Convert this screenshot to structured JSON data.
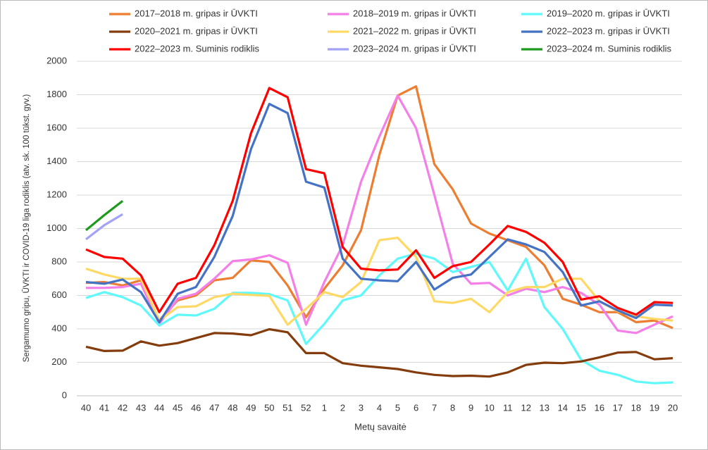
{
  "chart_data": {
    "type": "line",
    "y_label": "Sergamumo gripu, ŪVKTI ir COVID-19 liga rodiklis (atv. sk. 100 tūkst. gyv.)",
    "x_label": "Metų savaitė",
    "categories": [
      "40",
      "41",
      "42",
      "43",
      "44",
      "45",
      "46",
      "47",
      "48",
      "49",
      "50",
      "51",
      "52",
      "1",
      "2",
      "3",
      "4",
      "5",
      "6",
      "7",
      "8",
      "9",
      "10",
      "11",
      "12",
      "13",
      "14",
      "15",
      "16",
      "17",
      "18",
      "19",
      "20"
    ],
    "ylim": [
      0,
      2000
    ],
    "yticks": [
      0,
      200,
      400,
      600,
      800,
      1000,
      1200,
      1400,
      1600,
      1800,
      2000
    ],
    "grid": true,
    "legend": "top",
    "series": [
      {
        "name": "2017–2018 m. gripas ir ŪVKTI",
        "color": "#ed7d31",
        "values": [
          675,
          680,
          660,
          690,
          450,
          570,
          600,
          690,
          705,
          810,
          800,
          660,
          470,
          640,
          780,
          990,
          1440,
          1795,
          1850,
          1385,
          1235,
          1030,
          970,
          930,
          890,
          780,
          580,
          545,
          500,
          500,
          440,
          450,
          405
        ]
      },
      {
        "name": "2018–2019 m. gripas ir ŪVKTI",
        "color": "#f47fe8",
        "values": [
          645,
          645,
          650,
          670,
          430,
          580,
          610,
          700,
          805,
          815,
          840,
          795,
          425,
          680,
          900,
          1280,
          1550,
          1795,
          1600,
          1200,
          790,
          670,
          675,
          600,
          640,
          620,
          650,
          615,
          545,
          390,
          375,
          425,
          475
        ]
      },
      {
        "name": "2019–2020 m. gripas ir ŪVKTI",
        "color": "#5ff8fb",
        "values": [
          585,
          620,
          590,
          540,
          420,
          485,
          480,
          520,
          615,
          615,
          608,
          570,
          310,
          430,
          570,
          600,
          720,
          820,
          850,
          820,
          740,
          770,
          800,
          630,
          820,
          530,
          400,
          215,
          150,
          125,
          85,
          75,
          80
        ]
      },
      {
        "name": "2020–2021 m. gripas ir ŪVKTI",
        "color": "#843c0c",
        "values": [
          293,
          268,
          270,
          325,
          300,
          315,
          345,
          375,
          372,
          362,
          398,
          380,
          255,
          255,
          195,
          180,
          170,
          160,
          140,
          125,
          118,
          120,
          115,
          140,
          185,
          198,
          195,
          205,
          230,
          258,
          262,
          218,
          225
        ]
      },
      {
        "name": "2021–2022 m. gripas ir ŪVKTI",
        "color": "#ffd966",
        "values": [
          760,
          725,
          700,
          700,
          450,
          530,
          535,
          590,
          610,
          603,
          598,
          425,
          520,
          620,
          590,
          680,
          930,
          945,
          830,
          565,
          555,
          580,
          500,
          620,
          650,
          650,
          700,
          700,
          565,
          505,
          475,
          460,
          450
        ]
      },
      {
        "name": "2022–2023 m. gripas ir ŪVKTI",
        "color": "#4472c4",
        "values": [
          680,
          670,
          695,
          620,
          440,
          610,
          650,
          830,
          1075,
          1475,
          1745,
          1690,
          1280,
          1245,
          820,
          700,
          690,
          685,
          800,
          635,
          705,
          725,
          830,
          935,
          905,
          860,
          740,
          540,
          565,
          510,
          465,
          545,
          540
        ]
      },
      {
        "name": "2022–2023 m. Suminis rodiklis",
        "color": "#ff0000",
        "values": [
          875,
          830,
          820,
          720,
          500,
          670,
          705,
          900,
          1165,
          1570,
          1840,
          1785,
          1355,
          1330,
          890,
          760,
          750,
          755,
          870,
          705,
          775,
          800,
          905,
          1015,
          980,
          915,
          800,
          575,
          595,
          525,
          485,
          560,
          555
        ]
      },
      {
        "name": "2023–2024 m. gripas ir ŪVKTI",
        "color": "#a3a3f5",
        "values": [
          935,
          1020,
          1085,
          null,
          null,
          null,
          null,
          null,
          null,
          null,
          null,
          null,
          null,
          null,
          null,
          null,
          null,
          null,
          null,
          null,
          null,
          null,
          null,
          null,
          null,
          null,
          null,
          null,
          null,
          null,
          null,
          null,
          null
        ]
      },
      {
        "name": "2023–2024 m. Suminis rodiklis",
        "color": "#1e9a1e",
        "values": [
          990,
          1080,
          1165,
          null,
          null,
          null,
          null,
          null,
          null,
          null,
          null,
          null,
          null,
          null,
          null,
          null,
          null,
          null,
          null,
          null,
          null,
          null,
          null,
          null,
          null,
          null,
          null,
          null,
          null,
          null,
          null,
          null,
          null
        ]
      }
    ]
  }
}
